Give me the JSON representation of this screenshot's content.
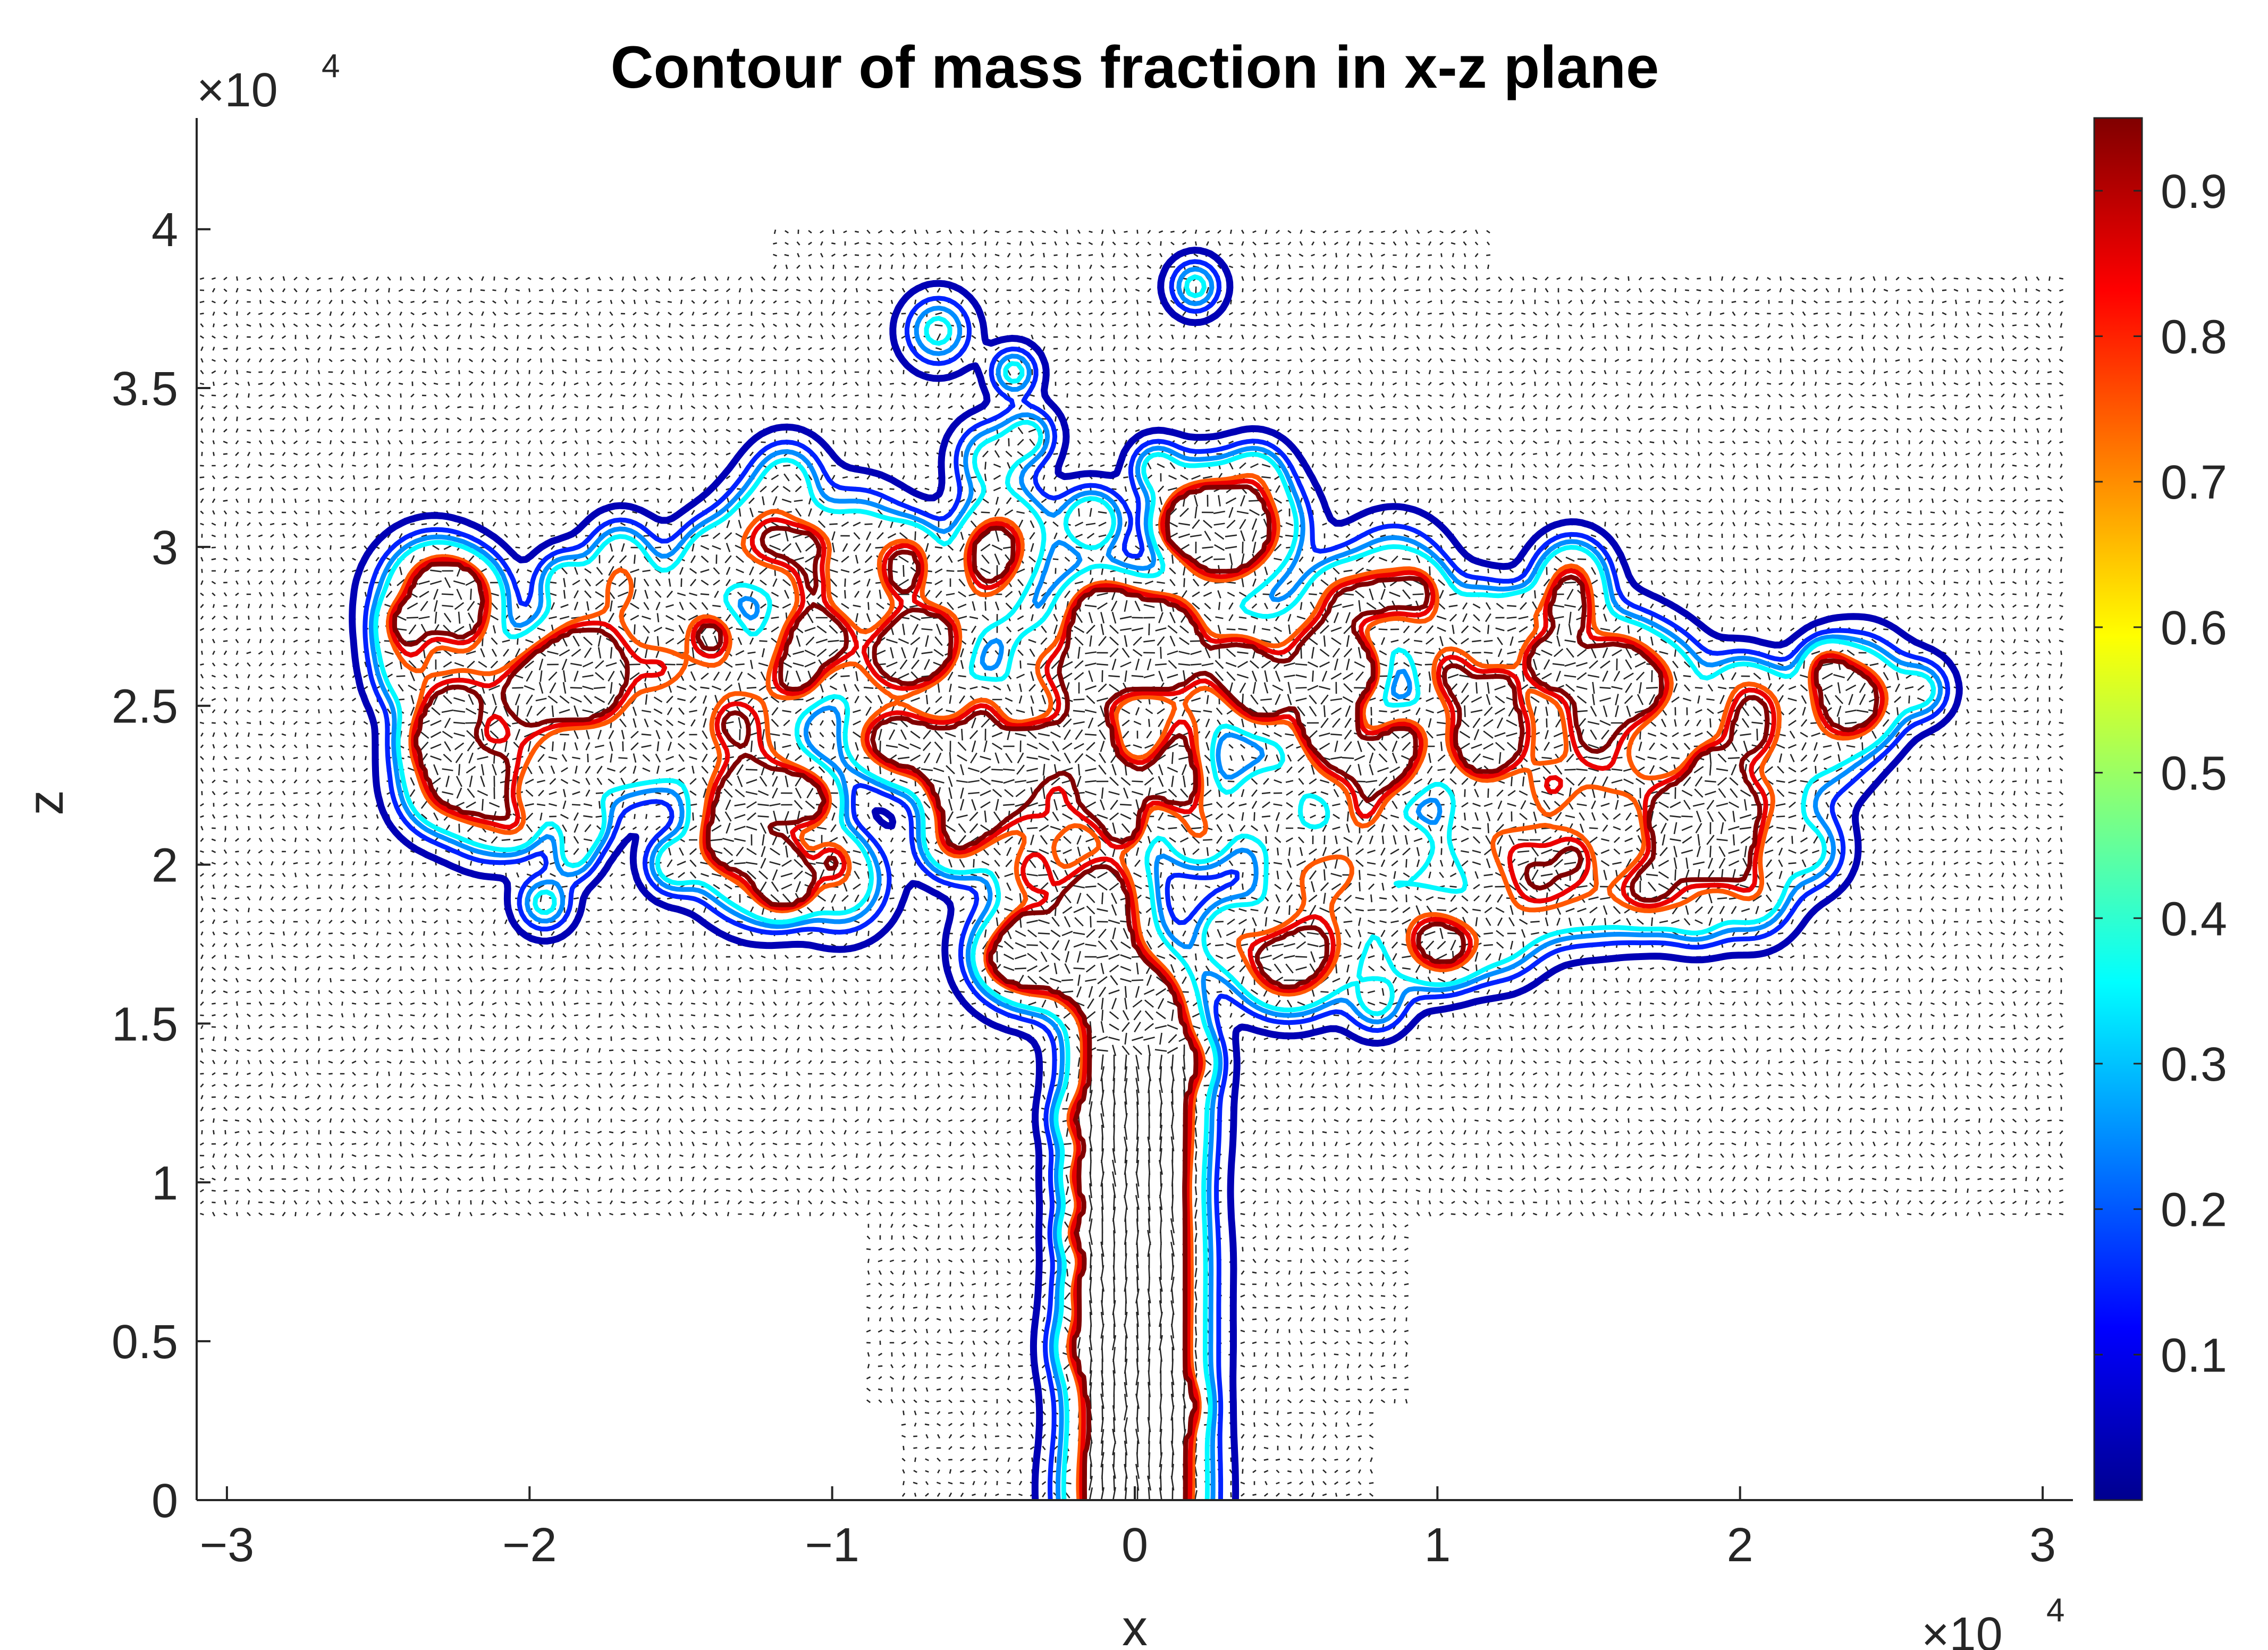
{
  "chart_data": {
    "type": "contour",
    "title": "Contour of mass fraction in x-z plane",
    "xlabel": "x",
    "ylabel": "z",
    "x_exponent_label": "×10",
    "x_exponent_power": "4",
    "y_exponent_label": "×10",
    "y_exponent_power": "4",
    "xlim": [
      -31000,
      31000
    ],
    "ylim": [
      0,
      43500
    ],
    "x_ticks": [
      -30000,
      -20000,
      -10000,
      0,
      10000,
      20000,
      30000
    ],
    "x_tick_labels": [
      "−3",
      "−2",
      "−1",
      "0",
      "1",
      "2",
      "3"
    ],
    "y_ticks": [
      0,
      5000,
      10000,
      15000,
      20000,
      25000,
      30000,
      35000,
      40000
    ],
    "y_tick_labels": [
      "0",
      "0.5",
      "1",
      "1.5",
      "2",
      "2.5",
      "3",
      "3.5",
      "4"
    ],
    "grid": false,
    "colorbar": {
      "colormap": "jet",
      "range": [
        0.0,
        0.95
      ],
      "ticks": [
        0.1,
        0.2,
        0.3,
        0.4,
        0.5,
        0.6,
        0.7,
        0.8,
        0.9
      ],
      "tick_labels": [
        "0.1",
        "0.2",
        "0.3",
        "0.4",
        "0.5",
        "0.6",
        "0.7",
        "0.8",
        "0.9"
      ],
      "position": "right"
    },
    "contour_levels": [
      0.05,
      0.15,
      0.25,
      0.35,
      0.75,
      0.85,
      0.95
    ],
    "plume": {
      "stem_x_range": [
        -1800,
        1800
      ],
      "stem_top_z": 14000,
      "cloud_x_range": [
        -26000,
        26000
      ],
      "cloud_z_range": [
        14000,
        32000
      ],
      "cloud_core_z": 24000,
      "cap_top_z": 40000
    },
    "quiver_field": {
      "x_range": [
        -31000,
        31000
      ],
      "z_range": [
        0,
        43500
      ],
      "color": "#000000"
    }
  }
}
